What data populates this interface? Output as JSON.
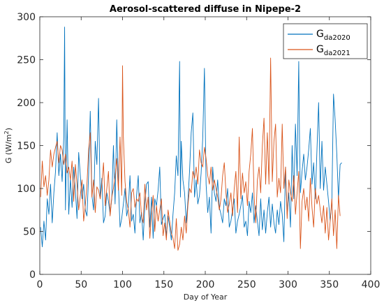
{
  "chart_data": {
    "type": "line",
    "title": "Aerosol-scattered diffuse in Nipepe-2",
    "xlabel": "Day of Year",
    "ylabel": {
      "main": "G (W/m",
      "sup": "2",
      "end": ")"
    },
    "xlim": [
      0,
      400
    ],
    "ylim": [
      0,
      300
    ],
    "xticks": [
      0,
      50,
      100,
      150,
      200,
      250,
      300,
      350,
      400
    ],
    "yticks": [
      0,
      50,
      100,
      150,
      200,
      250,
      300
    ],
    "grid": false,
    "legend_position": "top-right",
    "series": [
      {
        "name": "G",
        "name_sub": "da2020",
        "color": "#0072BD",
        "x": [
          1,
          3,
          5,
          7,
          9,
          11,
          13,
          15,
          17,
          19,
          21,
          23,
          25,
          27,
          29,
          30,
          31,
          33,
          35,
          37,
          39,
          41,
          43,
          45,
          47,
          49,
          51,
          53,
          55,
          57,
          59,
          61,
          63,
          65,
          67,
          69,
          71,
          73,
          75,
          77,
          79,
          81,
          83,
          85,
          87,
          89,
          91,
          93,
          95,
          97,
          99,
          101,
          103,
          105,
          107,
          109,
          111,
          113,
          115,
          117,
          119,
          121,
          123,
          125,
          127,
          129,
          131,
          133,
          135,
          137,
          139,
          141,
          143,
          145,
          147,
          149,
          151,
          153,
          155,
          157,
          159,
          161,
          163,
          165,
          167,
          169,
          170,
          171,
          173,
          175,
          177,
          179,
          181,
          183,
          185,
          187,
          189,
          191,
          193,
          195,
          197,
          199,
          201,
          203,
          205,
          207,
          209,
          211,
          213,
          215,
          217,
          219,
          221,
          223,
          225,
          227,
          229,
          231,
          233,
          235,
          237,
          239,
          241,
          243,
          245,
          247,
          249,
          251,
          253,
          255,
          257,
          259,
          261,
          263,
          265,
          267,
          269,
          271,
          273,
          275,
          277,
          279,
          281,
          283,
          285,
          287,
          289,
          291,
          293,
          295,
          297,
          299,
          301,
          303,
          305,
          307,
          309,
          311,
          313,
          314,
          315,
          317,
          319,
          321,
          323,
          325,
          327,
          329,
          331,
          333,
          335,
          337,
          339,
          341,
          343,
          345,
          347,
          349,
          351,
          353,
          355,
          357,
          359,
          361,
          363,
          365
        ],
        "y": [
          55,
          32,
          62,
          40,
          88,
          70,
          105,
          60,
          95,
          120,
          165,
          115,
          140,
          108,
          160,
          288,
          75,
          180,
          70,
          112,
          78,
          125,
          98,
          65,
          142,
          115,
          88,
          105,
          75,
          68,
          115,
          190,
          92,
          75,
          155,
          128,
          205,
          88,
          112,
          60,
          68,
          95,
          85,
          70,
          88,
          150,
          82,
          180,
          105,
          55,
          65,
          82,
          100,
          68,
          78,
          115,
          62,
          70,
          48,
          92,
          115,
          60,
          72,
          40,
          82,
          105,
          108,
          55,
          90,
          42,
          88,
          80,
          98,
          125,
          58,
          65,
          70,
          45,
          68,
          55,
          40,
          70,
          95,
          138,
          115,
          248,
          90,
          155,
          110,
          95,
          60,
          85,
          120,
          165,
          188,
          90,
          110,
          82,
          92,
          118,
          160,
          240,
          105,
          72,
          90,
          48,
          125,
          95,
          85,
          110,
          78,
          70,
          60,
          88,
          80,
          100,
          55,
          62,
          75,
          88,
          48,
          62,
          70,
          80,
          92,
          55,
          62,
          45,
          85,
          72,
          95,
          60,
          80,
          62,
          45,
          88,
          52,
          75,
          48,
          72,
          90,
          55,
          82,
          60,
          48,
          75,
          58,
          85,
          70,
          38,
          125,
          70,
          95,
          55,
          150,
          88,
          175,
          115,
          248,
          150,
          95,
          120,
          140,
          110,
          125,
          145,
          170,
          105,
          130,
          88,
          145,
          200,
          100,
          155,
          98,
          125,
          105,
          85,
          62,
          85,
          210,
          180,
          140,
          88,
          128,
          130
        ]
      },
      {
        "name": "G",
        "name_sub": "da2021",
        "color": "#D95319",
        "x": [
          1,
          3,
          5,
          7,
          9,
          11,
          13,
          15,
          17,
          19,
          21,
          23,
          25,
          27,
          29,
          31,
          33,
          35,
          37,
          39,
          41,
          43,
          45,
          47,
          49,
          51,
          53,
          55,
          57,
          59,
          61,
          63,
          65,
          67,
          69,
          71,
          73,
          75,
          77,
          79,
          81,
          83,
          85,
          87,
          89,
          91,
          93,
          95,
          97,
          99,
          100,
          101,
          103,
          105,
          107,
          109,
          111,
          113,
          115,
          117,
          119,
          121,
          123,
          125,
          127,
          129,
          131,
          133,
          135,
          137,
          139,
          141,
          143,
          145,
          147,
          149,
          151,
          153,
          155,
          157,
          159,
          161,
          163,
          165,
          167,
          169,
          171,
          173,
          175,
          177,
          179,
          181,
          183,
          185,
          187,
          189,
          191,
          193,
          195,
          197,
          199,
          201,
          203,
          205,
          207,
          209,
          211,
          213,
          215,
          217,
          219,
          221,
          223,
          225,
          227,
          229,
          231,
          233,
          235,
          237,
          239,
          241,
          243,
          245,
          247,
          249,
          251,
          253,
          255,
          257,
          259,
          261,
          263,
          265,
          267,
          269,
          271,
          273,
          275,
          277,
          279,
          281,
          283,
          285,
          287,
          289,
          291,
          293,
          295,
          297,
          299,
          301,
          303,
          305,
          307,
          309,
          311,
          313,
          315,
          317,
          319,
          321,
          323,
          325,
          327,
          329,
          331,
          333,
          335,
          337,
          339,
          341,
          343,
          345,
          347,
          349,
          351,
          353,
          355,
          357,
          359,
          361,
          363
        ],
        "y": [
          90,
          132,
          102,
          115,
          92,
          110,
          145,
          125,
          140,
          148,
          155,
          130,
          150,
          145,
          128,
          140,
          118,
          125,
          110,
          132,
          85,
          128,
          105,
          75,
          92,
          110,
          62,
          80,
          105,
          145,
          165,
          90,
          110,
          72,
          102,
          98,
          88,
          105,
          130,
          80,
          100,
          120,
          68,
          90,
          100,
          115,
          135,
          98,
          160,
          92,
          243,
          160,
          108,
          85,
          75,
          55,
          95,
          100,
          78,
          88,
          85,
          95,
          68,
          60,
          105,
          75,
          90,
          42,
          70,
          92,
          50,
          80,
          62,
          75,
          88,
          45,
          60,
          40,
          75,
          62,
          48,
          42,
          30,
          65,
          28,
          35,
          55,
          40,
          68,
          48,
          80,
          100,
          95,
          120,
          112,
          125,
          105,
          145,
          130,
          125,
          148,
          135,
          115,
          105,
          125,
          98,
          110,
          100,
          90,
          75,
          88,
          115,
          130,
          95,
          72,
          82,
          95,
          68,
          100,
          120,
          72,
          160,
          88,
          118,
          95,
          108,
          80,
          120,
          140,
          170,
          92,
          60,
          110,
          125,
          95,
          150,
          182,
          105,
          165,
          105,
          252,
          108,
          155,
          175,
          90,
          112,
          95,
          175,
          100,
          125,
          65,
          110,
          95,
          85,
          115,
          70,
          95,
          120,
          30,
          85,
          100,
          75,
          90,
          62,
          112,
          78,
          55,
          100,
          82,
          92,
          75,
          60,
          80,
          48,
          78,
          40,
          62,
          88,
          45,
          75,
          30,
          92,
          68
        ]
      }
    ]
  }
}
